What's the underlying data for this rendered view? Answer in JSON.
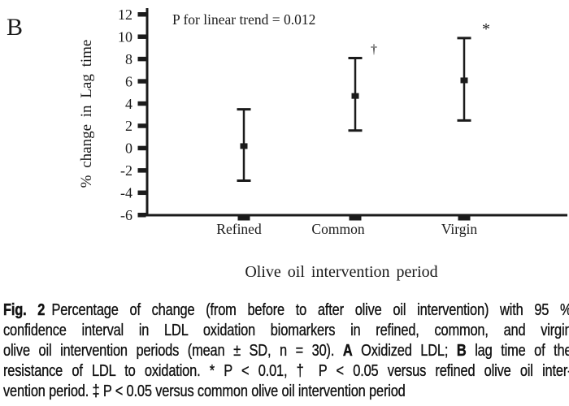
{
  "colors": {
    "ink": "#1b1b1b",
    "background": "#ffffff"
  },
  "chart_data": {
    "type": "scatter",
    "subtype": "mean-with-error-bars",
    "panel_label": "B",
    "annotation": "P for linear trend = 0.012",
    "xlabel": "Olive oil intervention period",
    "ylabel": "% change in Lag time",
    "ylim": [
      -6,
      12
    ],
    "yticks": [
      12,
      10,
      8,
      6,
      4,
      2,
      0,
      -2,
      -4,
      -6
    ],
    "grid": "off",
    "legend": "none",
    "categories": [
      "Refined",
      "Common",
      "Virgin"
    ],
    "series": [
      {
        "name": "Refined",
        "mean": 0.2,
        "ci_low": -2.9,
        "ci_high": 3.5,
        "significance": ""
      },
      {
        "name": "Common",
        "mean": 4.7,
        "ci_low": 1.6,
        "ci_high": 8.1,
        "significance": "†"
      },
      {
        "name": "Virgin",
        "mean": 6.1,
        "ci_low": 2.5,
        "ci_high": 9.9,
        "significance": "*"
      }
    ]
  },
  "figure": {
    "caption": {
      "lines": [
        {
          "justify": true,
          "segments": [
            {
              "text": "Fig. 2",
              "bold": true,
              "gap_after": true
            },
            {
              "text": "Percentage of change (from before to after olive oil intervention) with 95 %",
              "bold": false
            }
          ]
        },
        {
          "justify": true,
          "segments": [
            {
              "text": "confidence interval in LDL oxidation biomarkers in refined, common, and virgin",
              "bold": false
            }
          ]
        },
        {
          "justify": true,
          "segments": [
            {
              "text": "olive oil intervention periods (mean ± SD, n = 30). ",
              "bold": false
            },
            {
              "text": "A",
              "bold": true
            },
            {
              "text": " Oxidized LDL; ",
              "bold": false
            },
            {
              "text": "B",
              "bold": true
            },
            {
              "text": " lag time of the",
              "bold": false
            }
          ]
        },
        {
          "justify": true,
          "segments": [
            {
              "text": "resistance of LDL to oxidation. * P < 0.01, † P < 0.05 versus refined olive oil inter-",
              "bold": false
            }
          ]
        },
        {
          "justify": false,
          "segments": [
            {
              "text": "vention period. ‡ P < 0.05 versus common olive oil intervention period",
              "bold": false
            }
          ]
        }
      ]
    }
  }
}
